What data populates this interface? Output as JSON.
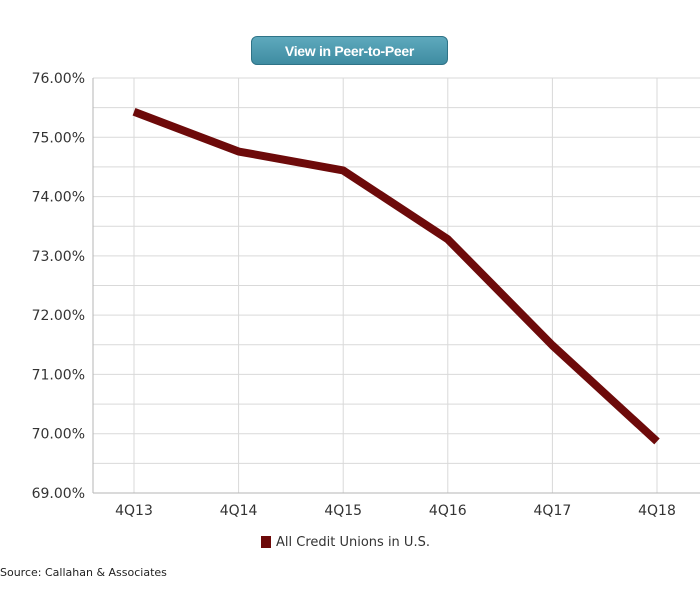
{
  "button": {
    "label": "View in Peer-to-Peer"
  },
  "source": {
    "text": "Source: Callahan & Associates"
  },
  "colors": {
    "series": "#6d0a0a",
    "button_bg": "#4a9ab0",
    "grid": "#d9d9d9"
  },
  "chart_data": {
    "type": "line",
    "title": "",
    "xlabel": "",
    "ylabel": "",
    "categories": [
      "4Q13",
      "4Q14",
      "4Q15",
      "4Q16",
      "4Q17",
      "4Q18"
    ],
    "series": [
      {
        "name": "All Credit Unions in U.S.",
        "values": [
          75.43,
          74.76,
          74.44,
          73.28,
          71.49,
          69.87
        ]
      }
    ],
    "ylim": [
      69.0,
      76.0
    ],
    "ytick_labels": [
      "76.00%",
      "75.00%",
      "74.00%",
      "73.00%",
      "72.00%",
      "71.00%",
      "70.00%",
      "69.00%"
    ],
    "grid": true,
    "legend_position": "bottom-center"
  }
}
